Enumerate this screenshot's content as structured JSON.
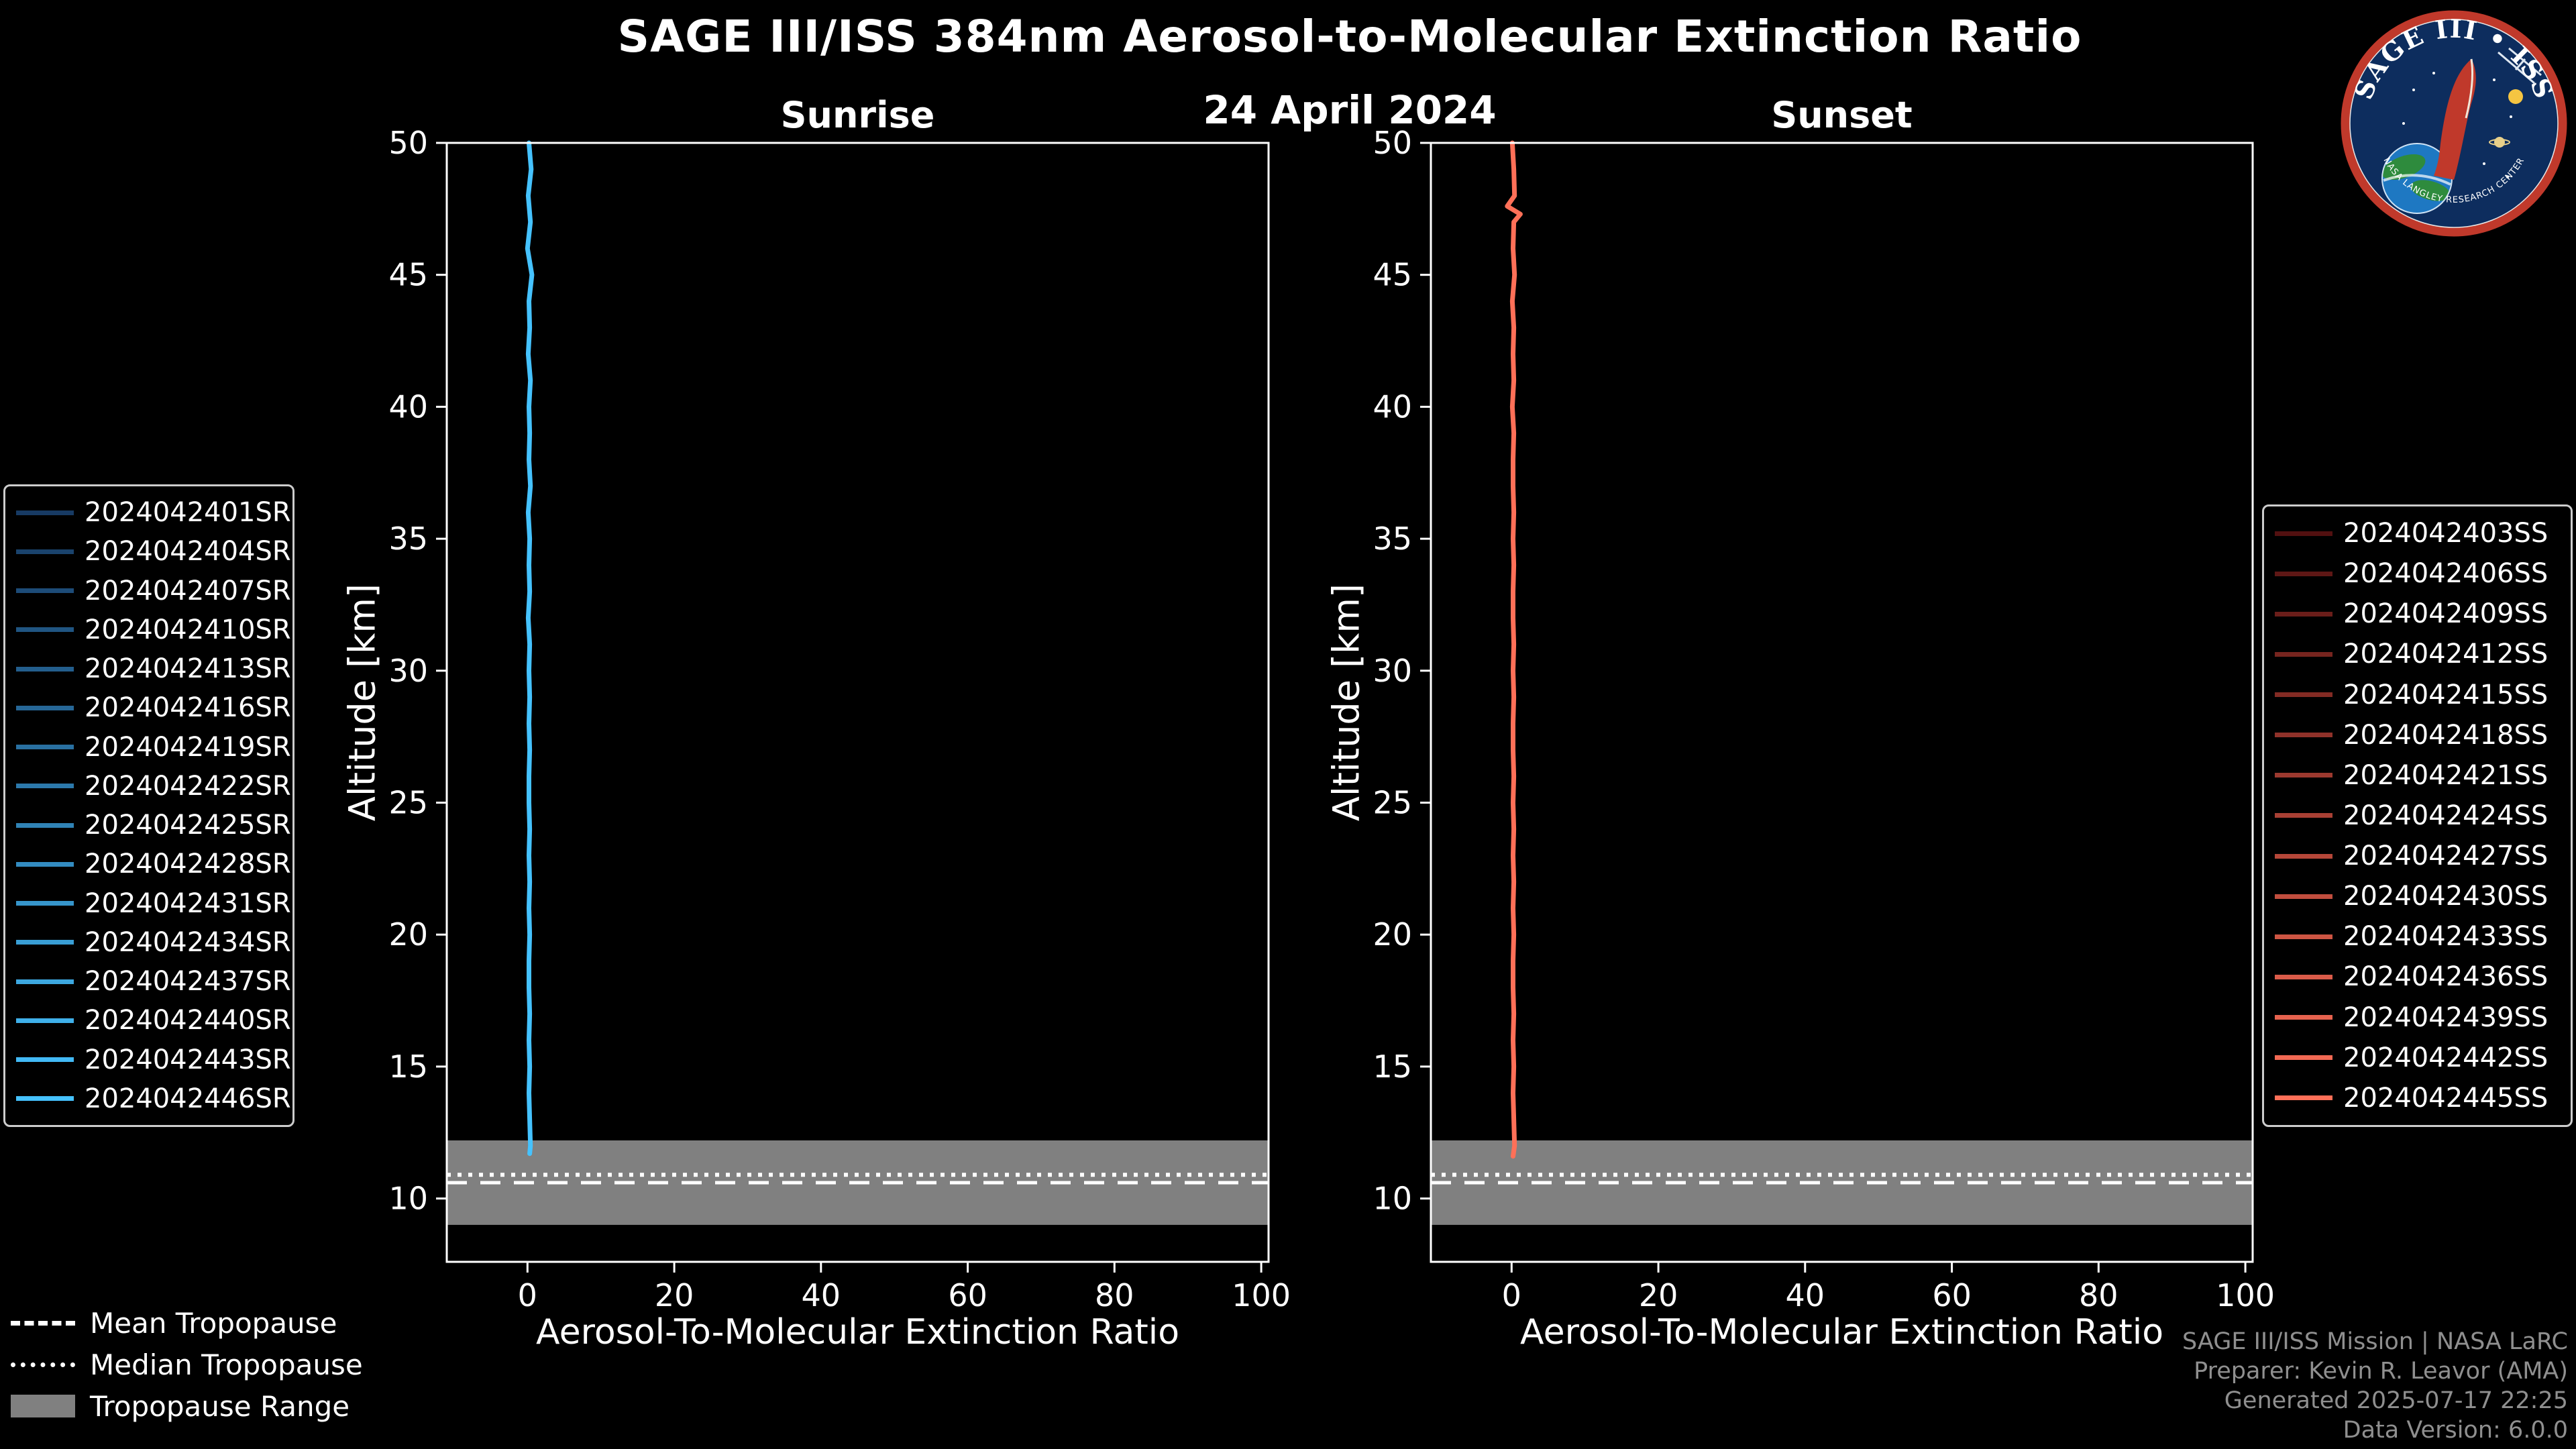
{
  "header": {
    "title": "SAGE III/ISS 384nm Aerosol-to-Molecular Extinction Ratio",
    "date": "24 April 2024"
  },
  "logo": {
    "title": "SAGE III • ISS",
    "ring_text": "NASA LANGLEY RESEARCH CENTER",
    "ring_color": "#c0392b",
    "bg_color": "#0d2d5e"
  },
  "tropopause_legend": {
    "mean_label": "Mean Tropopause",
    "median_label": "Median Tropopause",
    "range_label": "Tropopause Range",
    "range_color": "#808080"
  },
  "credits": [
    "SAGE III/ISS Mission | NASA LaRC",
    "Preparer: Kevin R. Leavor (AMA)",
    "Generated 2025-07-17 22:25",
    "Data Version: 6.0.0"
  ],
  "chart_data": [
    {
      "type": "line",
      "title": "Sunrise",
      "xlabel": "Aerosol-To-Molecular Extinction Ratio",
      "ylabel": "Altitude [km]",
      "xlim": [
        -11,
        101
      ],
      "ylim": [
        7.6,
        50
      ],
      "xticks": [
        0,
        20,
        40,
        60,
        80,
        100
      ],
      "yticks": [
        10,
        15,
        20,
        25,
        30,
        35,
        40,
        45,
        50
      ],
      "grid": false,
      "legend_position": "outside-left",
      "line_color": "#45c2ff",
      "tropopause": {
        "mean_km": 10.6,
        "median_km": 10.9,
        "range_km": [
          9.0,
          12.2
        ]
      },
      "series": [
        {
          "name": "2024042401SR",
          "color": "#173a63"
        },
        {
          "name": "2024042404SR",
          "color": "#1a436d"
        },
        {
          "name": "2024042407SR",
          "color": "#1d4c78"
        },
        {
          "name": "2024042410SR",
          "color": "#205582"
        },
        {
          "name": "2024042413SR",
          "color": "#235e8d"
        },
        {
          "name": "2024042416SR",
          "color": "#266797"
        },
        {
          "name": "2024042419SR",
          "color": "#2970a1"
        },
        {
          "name": "2024042422SR",
          "color": "#2c79ac"
        },
        {
          "name": "2024042425SR",
          "color": "#3083b6"
        },
        {
          "name": "2024042428SR",
          "color": "#338cc1"
        },
        {
          "name": "2024042431SR",
          "color": "#3695cb"
        },
        {
          "name": "2024042434SR",
          "color": "#399ed5"
        },
        {
          "name": "2024042437SR",
          "color": "#3ca7e0"
        },
        {
          "name": "2024042440SR",
          "color": "#3fb0ea"
        },
        {
          "name": "2024042443SR",
          "color": "#42b9f5"
        },
        {
          "name": "2024042446SR",
          "color": "#45c2ff"
        }
      ],
      "profile": {
        "altitude_km": [
          50,
          49,
          48,
          47,
          46,
          45,
          44,
          43,
          42,
          41,
          40,
          39,
          38,
          37,
          36,
          35,
          34,
          33,
          32,
          31,
          30,
          29,
          28,
          27,
          26,
          25,
          24,
          23,
          22,
          21,
          20,
          19,
          18,
          17,
          16,
          15,
          14,
          13,
          12,
          11.7
        ],
        "ratio": [
          0.2,
          0.5,
          0.1,
          0.4,
          0.0,
          0.6,
          0.2,
          0.3,
          0.1,
          0.4,
          0.2,
          0.3,
          0.2,
          0.4,
          0.1,
          0.3,
          0.2,
          0.3,
          0.1,
          0.3,
          0.2,
          0.3,
          0.2,
          0.3,
          0.2,
          0.2,
          0.3,
          0.2,
          0.3,
          0.2,
          0.3,
          0.2,
          0.2,
          0.3,
          0.2,
          0.3,
          0.2,
          0.3,
          0.4,
          0.3
        ]
      }
    },
    {
      "type": "line",
      "title": "Sunset",
      "xlabel": "Aerosol-To-Molecular Extinction Ratio",
      "ylabel": "Altitude [km]",
      "xlim": [
        -11,
        101
      ],
      "ylim": [
        7.6,
        50
      ],
      "xticks": [
        0,
        20,
        40,
        60,
        80,
        100
      ],
      "yticks": [
        10,
        15,
        20,
        25,
        30,
        35,
        40,
        45,
        50
      ],
      "grid": false,
      "legend_position": "outside-right",
      "line_color": "#ff7058",
      "tropopause": {
        "mean_km": 10.6,
        "median_km": 10.9,
        "range_km": [
          9.0,
          12.2
        ]
      },
      "series": [
        {
          "name": "2024042403SS",
          "color": "#521010"
        },
        {
          "name": "2024042406SS",
          "color": "#5e1715"
        },
        {
          "name": "2024042409SS",
          "color": "#6b1e1a"
        },
        {
          "name": "2024042412SS",
          "color": "#77251f"
        },
        {
          "name": "2024042415SS",
          "color": "#832b24"
        },
        {
          "name": "2024042418SS",
          "color": "#90322a"
        },
        {
          "name": "2024042421SS",
          "color": "#9c392f"
        },
        {
          "name": "2024042424SS",
          "color": "#a84034"
        },
        {
          "name": "2024042427SS",
          "color": "#b54739"
        },
        {
          "name": "2024042430SS",
          "color": "#c14e3e"
        },
        {
          "name": "2024042433SS",
          "color": "#cd5543"
        },
        {
          "name": "2024042436SS",
          "color": "#da5b49"
        },
        {
          "name": "2024042439SS",
          "color": "#e6624e"
        },
        {
          "name": "2024042442SS",
          "color": "#f26953"
        },
        {
          "name": "2024042445SS",
          "color": "#ff7058"
        }
      ],
      "profile": {
        "altitude_km": [
          50,
          49,
          48,
          47.6,
          47.3,
          47,
          46,
          45,
          44,
          43,
          42,
          41,
          40,
          39,
          38,
          37,
          36,
          35,
          34,
          33,
          32,
          31,
          30,
          29,
          28,
          27,
          26,
          25,
          24,
          23,
          22,
          21,
          20,
          19,
          18,
          17,
          16,
          15,
          14,
          13,
          12,
          11.6
        ],
        "ratio": [
          0.1,
          0.3,
          0.4,
          -0.6,
          1.2,
          0.3,
          0.2,
          0.4,
          0.1,
          0.3,
          0.2,
          0.3,
          0.1,
          0.3,
          0.2,
          0.2,
          0.3,
          0.2,
          0.3,
          0.2,
          0.2,
          0.3,
          0.2,
          0.3,
          0.2,
          0.2,
          0.3,
          0.2,
          0.3,
          0.2,
          0.3,
          0.2,
          0.3,
          0.2,
          0.2,
          0.3,
          0.2,
          0.3,
          0.2,
          0.3,
          0.4,
          0.2
        ]
      }
    }
  ]
}
